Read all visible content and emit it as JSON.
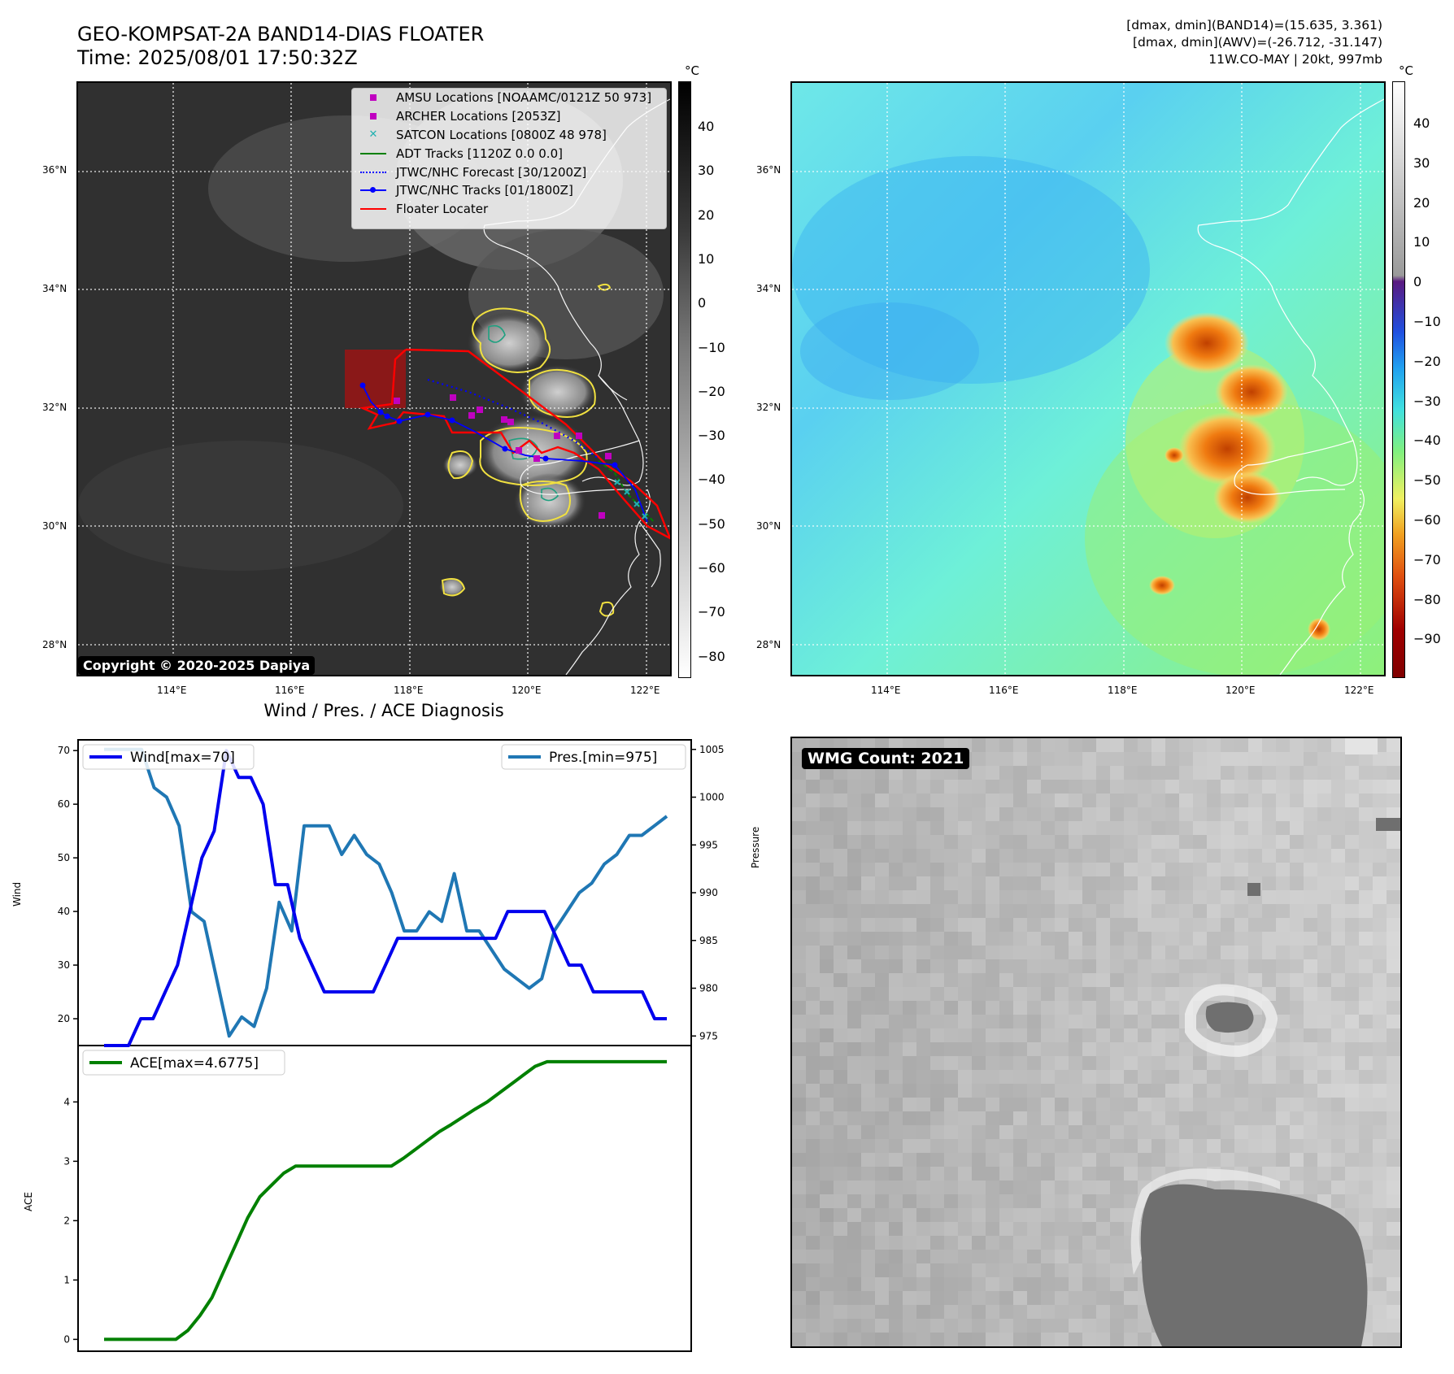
{
  "header": {
    "title_line1": "GEO-KOMPSAT-2A BAND14-DIAS FLOATER",
    "title_line2": "Time: 2025/08/01 17:50:32Z",
    "info_line1": "[dmax, dmin](BAND14)=(15.635, 3.361)",
    "info_line2": "[dmax, dmin](AWV)=(-26.712, -31.147)",
    "info_line3": "11W.CO-MAY | 20kt, 997mb"
  },
  "map_left": {
    "copyright": "Copyright © 2020-2025 Dapiya",
    "lon_ticks": [
      "114°E",
      "116°E",
      "118°E",
      "120°E",
      "122°E"
    ],
    "lat_ticks": [
      "36°N",
      "34°N",
      "32°N",
      "30°N",
      "28°N"
    ],
    "colorbar_unit": "°C",
    "colorbar_ticks": [
      "40",
      "30",
      "20",
      "10",
      "0",
      "−10",
      "−20",
      "−30",
      "−40",
      "−50",
      "−60",
      "−70",
      "−80"
    ],
    "legend": [
      {
        "label": "AMSU Locations [NOAAMC/0121Z 50 973]",
        "color": "#c000c0",
        "kind": "square"
      },
      {
        "label": "ARCHER Locations [2053Z]",
        "color": "#c000c0",
        "kind": "square"
      },
      {
        "label": "SATCON Locations [0800Z 48 978]",
        "color": "#20b0b0",
        "kind": "x"
      },
      {
        "label": "ADT Tracks [1120Z 0.0 0.0]",
        "color": "#008000",
        "kind": "line"
      },
      {
        "label": "JTWC/NHC Forecast [30/1200Z]",
        "color": "#0000ff",
        "kind": "dotted"
      },
      {
        "label": "JTWC/NHC Tracks [01/1800Z]",
        "color": "#0000ff",
        "kind": "line-dot"
      },
      {
        "label": "Floater Locater",
        "color": "#ff0000",
        "kind": "line"
      }
    ]
  },
  "map_right": {
    "lon_ticks": [
      "114°E",
      "116°E",
      "118°E",
      "120°E",
      "122°E"
    ],
    "lat_ticks": [
      "36°N",
      "34°N",
      "32°N",
      "30°N",
      "28°N"
    ],
    "colorbar_unit": "°C",
    "colorbar_ticks": [
      "40",
      "30",
      "20",
      "10",
      "0",
      "−10",
      "−20",
      "−30",
      "−40",
      "−50",
      "−60",
      "−70",
      "−80",
      "−90"
    ]
  },
  "wmg": {
    "label": "WMG Count: 2021"
  },
  "chart_data": [
    {
      "type": "line",
      "title": "Wind / Pres. / ACE Diagnosis",
      "ylabel": "Wind",
      "ylabel_right": "Pressure",
      "ylim": [
        15,
        72
      ],
      "ylim_right": [
        974,
        1006
      ],
      "yticks": [
        20,
        30,
        40,
        50,
        60,
        70
      ],
      "yticks_right": [
        975,
        980,
        985,
        990,
        995,
        1000,
        1005
      ],
      "series": [
        {
          "name": "Wind[max=70]",
          "axis": "left",
          "color": "#0000ee",
          "values": [
            15,
            15,
            15,
            20,
            20,
            25,
            30,
            40,
            50,
            55,
            70,
            65,
            65,
            60,
            45,
            45,
            35,
            30,
            25,
            25,
            25,
            25,
            25,
            30,
            35,
            35,
            35,
            35,
            35,
            35,
            35,
            35,
            35,
            40,
            40,
            40,
            40,
            35,
            30,
            30,
            25,
            25,
            25,
            25,
            25,
            20,
            20
          ]
        },
        {
          "name": "Pres.[min=975]",
          "axis": "right",
          "color": "#1f77b4",
          "values": [
            1005,
            1005,
            1005,
            1005,
            1001,
            1000,
            997,
            988,
            987,
            981,
            975,
            977,
            976,
            980,
            989,
            986,
            997,
            997,
            997,
            994,
            996,
            994,
            993,
            990,
            986,
            986,
            988,
            987,
            992,
            986,
            986,
            984,
            982,
            981,
            980,
            981,
            986,
            988,
            990,
            991,
            993,
            994,
            996,
            996,
            997,
            998
          ]
        }
      ]
    },
    {
      "type": "line",
      "ylabel": "ACE",
      "ylim": [
        -0.2,
        4.95
      ],
      "yticks": [
        0,
        1,
        2,
        3,
        4
      ],
      "series": [
        {
          "name": "ACE[max=4.6775]",
          "color": "#008000",
          "values": [
            0,
            0,
            0,
            0,
            0,
            0,
            0,
            0.15,
            0.4,
            0.7,
            1.15,
            1.6,
            2.05,
            2.4,
            2.6,
            2.8,
            2.92,
            2.92,
            2.92,
            2.92,
            2.92,
            2.92,
            2.92,
            2.92,
            2.92,
            3.05,
            3.2,
            3.35,
            3.5,
            3.62,
            3.75,
            3.88,
            4.0,
            4.15,
            4.3,
            4.45,
            4.6,
            4.6775,
            4.6775,
            4.6775,
            4.6775,
            4.6775,
            4.6775,
            4.6775,
            4.6775,
            4.6775,
            4.6775,
            4.6775
          ]
        }
      ]
    }
  ]
}
